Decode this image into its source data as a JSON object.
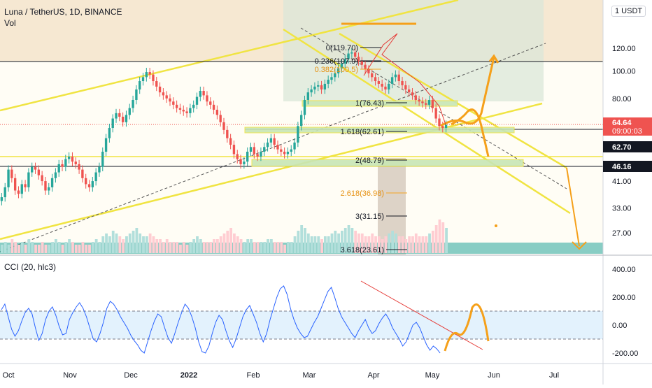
{
  "header": {
    "symbol_title": "Luna / TetherUS, 1D, BINANCE",
    "volume_label": "Vol",
    "currency_badge": "1 USDT"
  },
  "cci": {
    "label": "CCI (20, hlc3)",
    "axis_ticks": [
      "400.00",
      "200.00",
      "0.00",
      "-200.00"
    ],
    "tick_values": [
      400,
      200,
      0,
      -200
    ],
    "band_upper": 100,
    "band_lower": -100
  },
  "colors": {
    "up": "#26a69a",
    "down": "#ef5350",
    "fib": "#f5a623",
    "channel": "#f0e442",
    "projection": "#f5a01a",
    "cci_line": "#2962ff",
    "cci_band": "#e3f2fd",
    "trend_red": "#e53935",
    "price_tag_red": "#ef5350",
    "price_tag_black": "#131722"
  },
  "chart_data": [
    {
      "type": "candlestick",
      "title": "Luna / TetherUS, 1D, BINANCE",
      "y_scale": "log",
      "y_ticks": [
        27,
        33,
        41,
        46.16,
        62.7,
        64.64,
        80,
        100,
        120
      ],
      "y_tick_labels": [
        "27.00",
        "33.00",
        "41.00",
        "46.16",
        "62.70",
        "64.64",
        "80.00",
        "100.00",
        "120.00"
      ],
      "x_ticks": [
        "Oct",
        "Nov",
        "Dec",
        "2022",
        "Feb",
        "Mar",
        "Apr",
        "May",
        "Jun",
        "Jul"
      ],
      "price_labels": {
        "current": "64.64",
        "countdown": "09:00:03",
        "level_1": "62.70",
        "level_2": "46.16"
      },
      "fib_levels": [
        {
          "label": "0(119.70)",
          "value": 119.7
        },
        {
          "label": "0.236(107.9)",
          "value": 107.9
        },
        {
          "label": "0.382(100.5)",
          "value": 100.5
        },
        {
          "label": "1(76.43)",
          "value": 76.43
        },
        {
          "label": "1.618(62.61)",
          "value": 62.61
        },
        {
          "label": "2(48.79)",
          "value": 48.79
        },
        {
          "label": "2.618(36.98)",
          "value": 36.98
        },
        {
          "label": "3(31.15)",
          "value": 31.15
        },
        {
          "label": "3.618(23.61)",
          "value": 23.61
        }
      ],
      "close_series": [
        36,
        39,
        45,
        42,
        38,
        37,
        40,
        39,
        44,
        46,
        45,
        43,
        41,
        38,
        39,
        42,
        44,
        47,
        46,
        49,
        50,
        48,
        47,
        45,
        42,
        40,
        39,
        41,
        44,
        46,
        52,
        58,
        63,
        68,
        71,
        69,
        66,
        70,
        74,
        79,
        86,
        92,
        95,
        99,
        97,
        92,
        88,
        84,
        82,
        80,
        78,
        76,
        74,
        73,
        72,
        71,
        74,
        76,
        81,
        85,
        82,
        78,
        76,
        73,
        70,
        66,
        62,
        58,
        55,
        51,
        49,
        47,
        48,
        52,
        54,
        51,
        50,
        52,
        54,
        56,
        58,
        55,
        53,
        52,
        51,
        52,
        53,
        56,
        64,
        70,
        79,
        84,
        86,
        88,
        89,
        86,
        90,
        93,
        95,
        98,
        102,
        106,
        110,
        115,
        116,
        112,
        108,
        105,
        101,
        98,
        95,
        92,
        90,
        88,
        86,
        90,
        95,
        97,
        92,
        89,
        86,
        84,
        82,
        79,
        78,
        77,
        76,
        79,
        74,
        68,
        64,
        63,
        64.64
      ],
      "volume_series": [
        3,
        4,
        3,
        5,
        4,
        3,
        4,
        3,
        5,
        4,
        3,
        3,
        4,
        3,
        3,
        4,
        5,
        4,
        3,
        4,
        5,
        4,
        3,
        3,
        4,
        3,
        3,
        4,
        5,
        4,
        6,
        7,
        6,
        8,
        7,
        6,
        5,
        6,
        7,
        8,
        9,
        7,
        6,
        6,
        7,
        6,
        5,
        5,
        4,
        5,
        4,
        4,
        4,
        3,
        4,
        3,
        4,
        5,
        6,
        5,
        4,
        4,
        4,
        5,
        5,
        6,
        7,
        8,
        9,
        7,
        6,
        5,
        4,
        5,
        5,
        4,
        4,
        4,
        4,
        5,
        5,
        4,
        4,
        4,
        3,
        4,
        4,
        6,
        8,
        10,
        9,
        7,
        6,
        6,
        6,
        5,
        6,
        6,
        7,
        8,
        7,
        8,
        9,
        10,
        9,
        8,
        7,
        7,
        6,
        6,
        7,
        6,
        6,
        5,
        6,
        7,
        8,
        7,
        6,
        6,
        5,
        6,
        6,
        7,
        6,
        6,
        6,
        7,
        8,
        10,
        12,
        11,
        9
      ]
    },
    {
      "type": "line",
      "name": "CCI (20, hlc3)",
      "y_ticks": [
        400,
        200,
        0,
        -200
      ],
      "ylim": [
        -260,
        430
      ],
      "values": [
        110,
        150,
        60,
        -30,
        -80,
        -40,
        30,
        90,
        120,
        80,
        -20,
        -110,
        -60,
        40,
        100,
        130,
        70,
        -10,
        -70,
        -60,
        40,
        90,
        130,
        160,
        120,
        60,
        -20,
        -100,
        -120,
        -60,
        20,
        120,
        170,
        150,
        110,
        60,
        20,
        -20,
        -70,
        -110,
        -140,
        -180,
        -200,
        -120,
        -40,
        30,
        80,
        60,
        -20,
        -90,
        -130,
        -60,
        20,
        90,
        150,
        120,
        60,
        -20,
        -120,
        -190,
        -200,
        -150,
        -60,
        20,
        70,
        40,
        -40,
        -110,
        -160,
        -100,
        -20,
        60,
        110,
        140,
        80,
        20,
        -60,
        -120,
        -60,
        40,
        120,
        200,
        260,
        280,
        220,
        120,
        40,
        -20,
        -60,
        -90,
        -80,
        -30,
        20,
        60,
        120,
        180,
        240,
        270,
        200,
        120,
        60,
        20,
        -20,
        -60,
        -90,
        -40,
        0,
        40,
        -20,
        -60,
        -40,
        10,
        50,
        80,
        40,
        -20,
        -60,
        -100,
        -150,
        -120,
        -60,
        0,
        20,
        -20,
        -80,
        -140,
        -180,
        -150,
        -170,
        -200
      ]
    }
  ]
}
